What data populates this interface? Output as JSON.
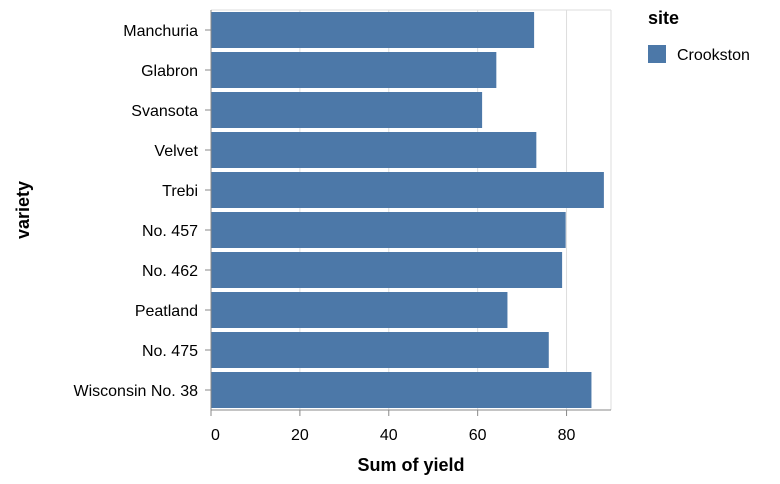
{
  "chart_data": {
    "type": "bar",
    "orientation": "horizontal",
    "categories": [
      "Manchuria",
      "Glabron",
      "Svansota",
      "Velvet",
      "Trebi",
      "No. 457",
      "No. 462",
      "Peatland",
      "No. 475",
      "Wisconsin No. 38"
    ],
    "series": [
      {
        "name": "Crookston",
        "color": "#4c78a8",
        "values": [
          72.7,
          64.2,
          61.0,
          73.2,
          88.4,
          79.8,
          79.0,
          66.7,
          76.0,
          85.6
        ]
      }
    ],
    "xlabel": "Sum of yield",
    "ylabel": "variety",
    "xlim": [
      0,
      90
    ],
    "xticks": [
      0,
      20,
      40,
      60,
      80
    ],
    "grid": true,
    "legend": {
      "title": "site",
      "placement": "right"
    }
  }
}
